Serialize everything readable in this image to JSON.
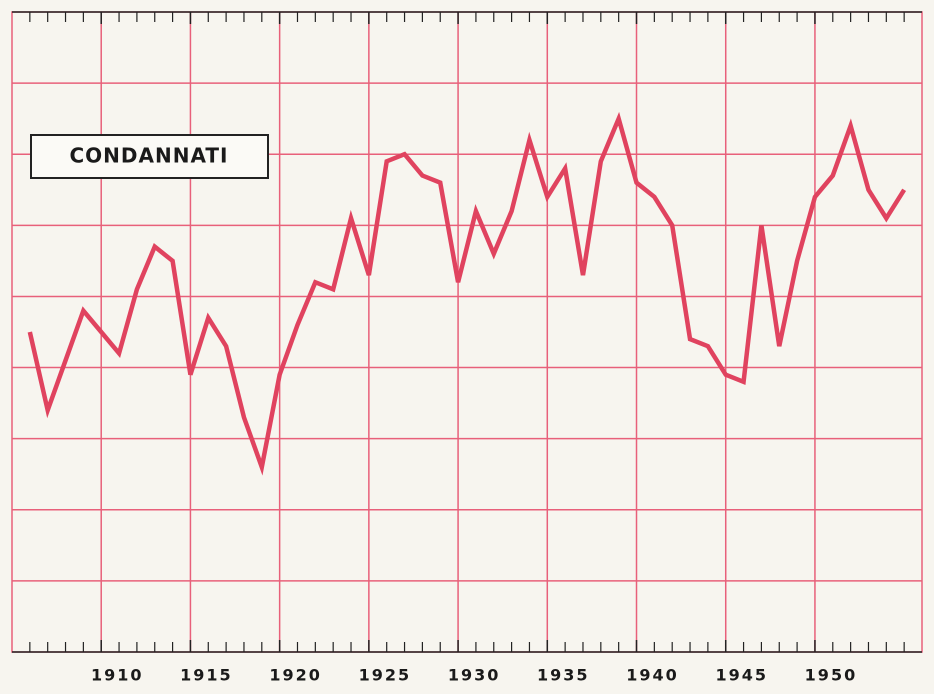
{
  "chart_data": {
    "type": "line",
    "title": "CONDANNATI",
    "x": [
      1906,
      1907,
      1908,
      1909,
      1910,
      1911,
      1912,
      1913,
      1914,
      1915,
      1916,
      1917,
      1918,
      1919,
      1920,
      1921,
      1922,
      1923,
      1924,
      1925,
      1926,
      1927,
      1928,
      1929,
      1930,
      1931,
      1932,
      1933,
      1934,
      1935,
      1936,
      1937,
      1938,
      1939,
      1940,
      1941,
      1942,
      1943,
      1944,
      1945,
      1946,
      1947,
      1948,
      1949,
      1950,
      1951,
      1952,
      1953,
      1954,
      1955
    ],
    "series": [
      {
        "name": "CONDANNATI",
        "color": "#e0435f",
        "values": [
          4.5,
          3.4,
          4.1,
          4.8,
          4.5,
          4.2,
          5.1,
          5.7,
          5.5,
          3.9,
          4.7,
          4.3,
          3.3,
          2.6,
          3.9,
          4.6,
          5.2,
          5.1,
          6.1,
          5.3,
          6.9,
          7.0,
          6.7,
          6.6,
          5.2,
          6.2,
          5.6,
          6.2,
          7.2,
          6.4,
          6.8,
          5.3,
          6.9,
          7.5,
          6.6,
          6.4,
          6.0,
          4.4,
          4.3,
          3.9,
          3.8,
          6.0,
          4.3,
          5.5,
          6.4,
          6.7,
          7.4,
          6.5,
          6.1,
          6.5
        ]
      }
    ],
    "xlim": [
      1905,
      1956
    ],
    "xticks": [
      1910,
      1915,
      1920,
      1925,
      1930,
      1935,
      1940,
      1945,
      1950
    ],
    "xminorticks": [
      1906,
      1907,
      1908,
      1909,
      1911,
      1912,
      1913,
      1914,
      1916,
      1917,
      1918,
      1919,
      1921,
      1922,
      1923,
      1924,
      1926,
      1927,
      1928,
      1929,
      1931,
      1932,
      1933,
      1934,
      1936,
      1937,
      1938,
      1939,
      1941,
      1942,
      1943,
      1944,
      1946,
      1947,
      1948,
      1949,
      1951,
      1952,
      1953,
      1954,
      1955
    ],
    "ylim": [
      0,
      9
    ],
    "yticks": [
      1,
      2,
      3,
      4,
      5,
      6,
      7,
      8
    ],
    "grid": true,
    "grid_color": "#e8607a"
  }
}
